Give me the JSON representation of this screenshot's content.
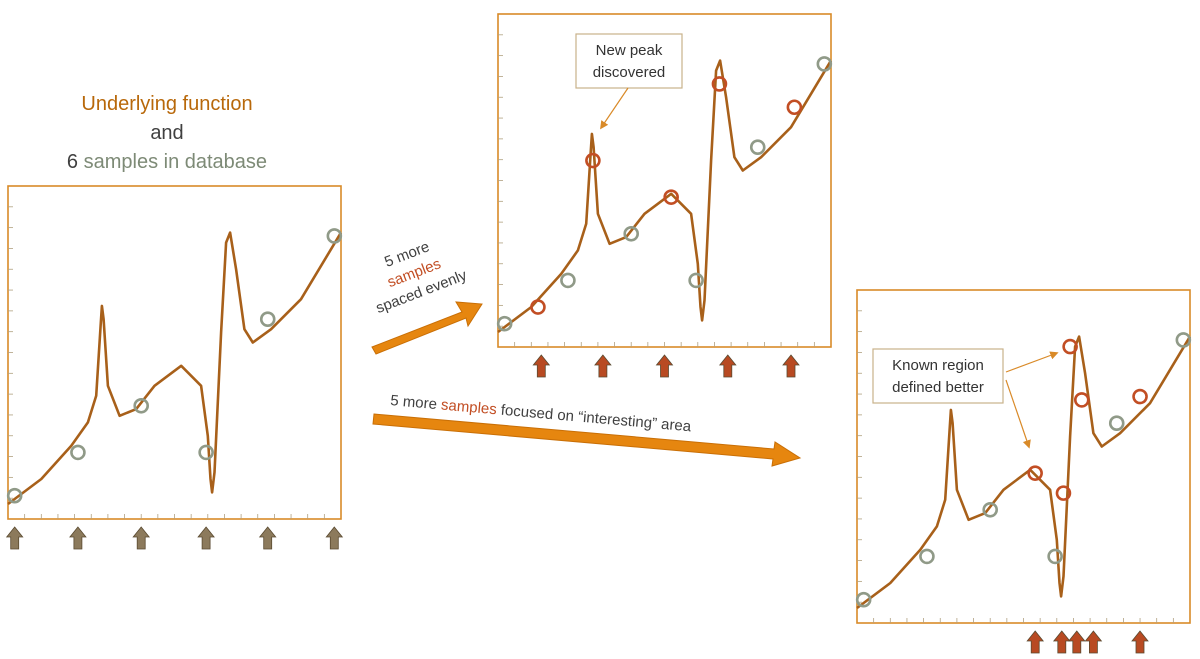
{
  "title": {
    "part1": "Underlying function",
    "part2": "and",
    "part3_number": "6",
    "part3_text": " samples in database"
  },
  "arrow_even": {
    "line1": "5 more",
    "line2": "samples",
    "line3": "spaced evenly"
  },
  "arrow_focused": {
    "prefix": "5 more ",
    "highlight": "samples",
    "suffix": " focused on “interesting” area"
  },
  "callout_peak": {
    "line1": "New peak",
    "line2": "discovered"
  },
  "callout_region": {
    "line1": "Known region",
    "line2": "defined better"
  },
  "colors": {
    "frame": "#d98a28",
    "curve": "#a8601a",
    "existing_sample": "#909a88",
    "new_sample": "#c24e24",
    "title_orange": "#b8680a",
    "title_dark": "#404040",
    "title_gray": "#7d8a76",
    "arrow": "#e6860f",
    "existing_arrow": "#8c7a5c",
    "new_arrow": "#b84a22",
    "callout_border": "#c9b28a"
  }
}
